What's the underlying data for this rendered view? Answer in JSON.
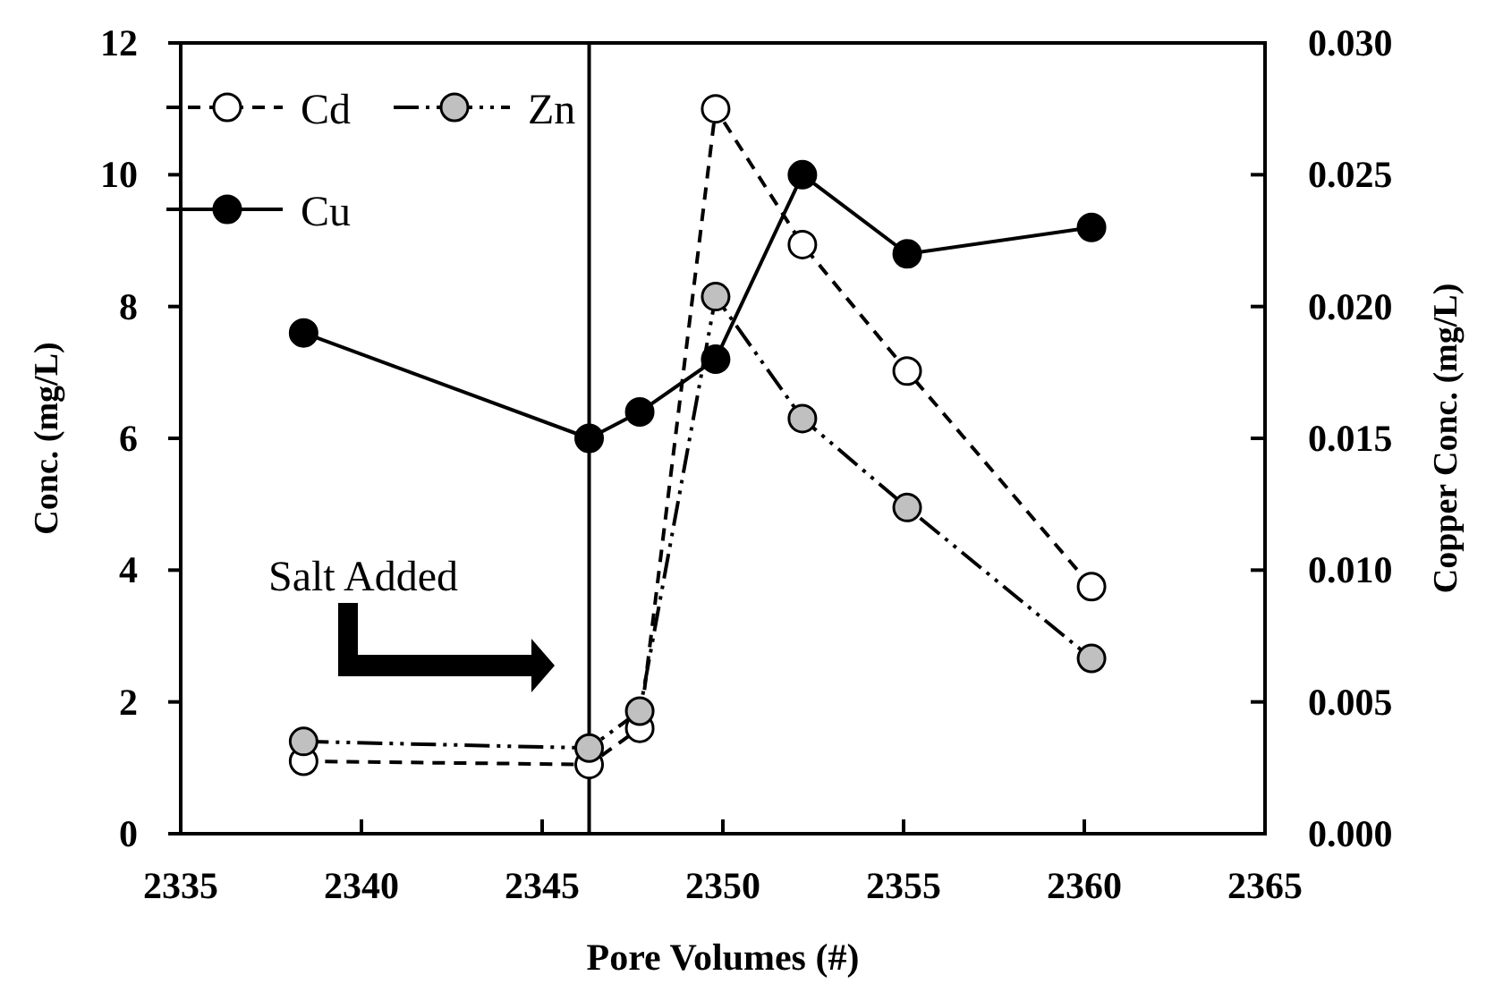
{
  "chart_data": {
    "type": "line",
    "xlabel": "Pore Volumes (#)",
    "ylabel": "Conc. (mg/L)",
    "y2label": "Copper Conc. (mg/L)",
    "xlim": [
      2335,
      2365
    ],
    "xticks": [
      2335,
      2340,
      2345,
      2350,
      2355,
      2360,
      2365
    ],
    "ylim": [
      0,
      12
    ],
    "yticks": [
      0,
      2,
      4,
      6,
      8,
      10,
      12
    ],
    "y2lim": [
      0,
      0.03
    ],
    "y2ticks": [
      {
        "value": 0,
        "label": "0.000"
      },
      {
        "value": 0.005,
        "label": "0.005"
      },
      {
        "value": 0.01,
        "label": "0.010"
      },
      {
        "value": 0.015,
        "label": "0.015"
      },
      {
        "value": 0.02,
        "label": "0.020"
      },
      {
        "value": 0.025,
        "label": "0.025"
      },
      {
        "value": 0.03,
        "label": "0.030"
      }
    ],
    "x": [
      2338.4,
      2346.3,
      2347.7,
      2349.8,
      2352.2,
      2355.1,
      2360.2
    ],
    "series": [
      {
        "name": "Cd",
        "color": "#ffffff",
        "line_style": "dashed",
        "values": [
          1.1,
          1.05,
          1.6,
          11.0,
          8.94,
          7.02,
          3.75
        ]
      },
      {
        "name": "Zn",
        "color": "#c0c0c0",
        "line_style": "dashdot",
        "values": [
          1.4,
          1.3,
          1.86,
          8.15,
          6.3,
          4.95,
          2.66
        ]
      },
      {
        "name": "Cu",
        "color": "#000000",
        "line_style": "solid",
        "axis": "y2",
        "values": [
          0.019,
          0.015,
          0.016,
          0.018,
          0.025,
          0.022,
          0.023
        ]
      }
    ],
    "ref_lines": [
      {
        "axis": "x",
        "value": 2346.3
      }
    ],
    "annotations": [
      "Salt Added"
    ],
    "marker": "circle",
    "legend": "top left",
    "grid": false
  }
}
